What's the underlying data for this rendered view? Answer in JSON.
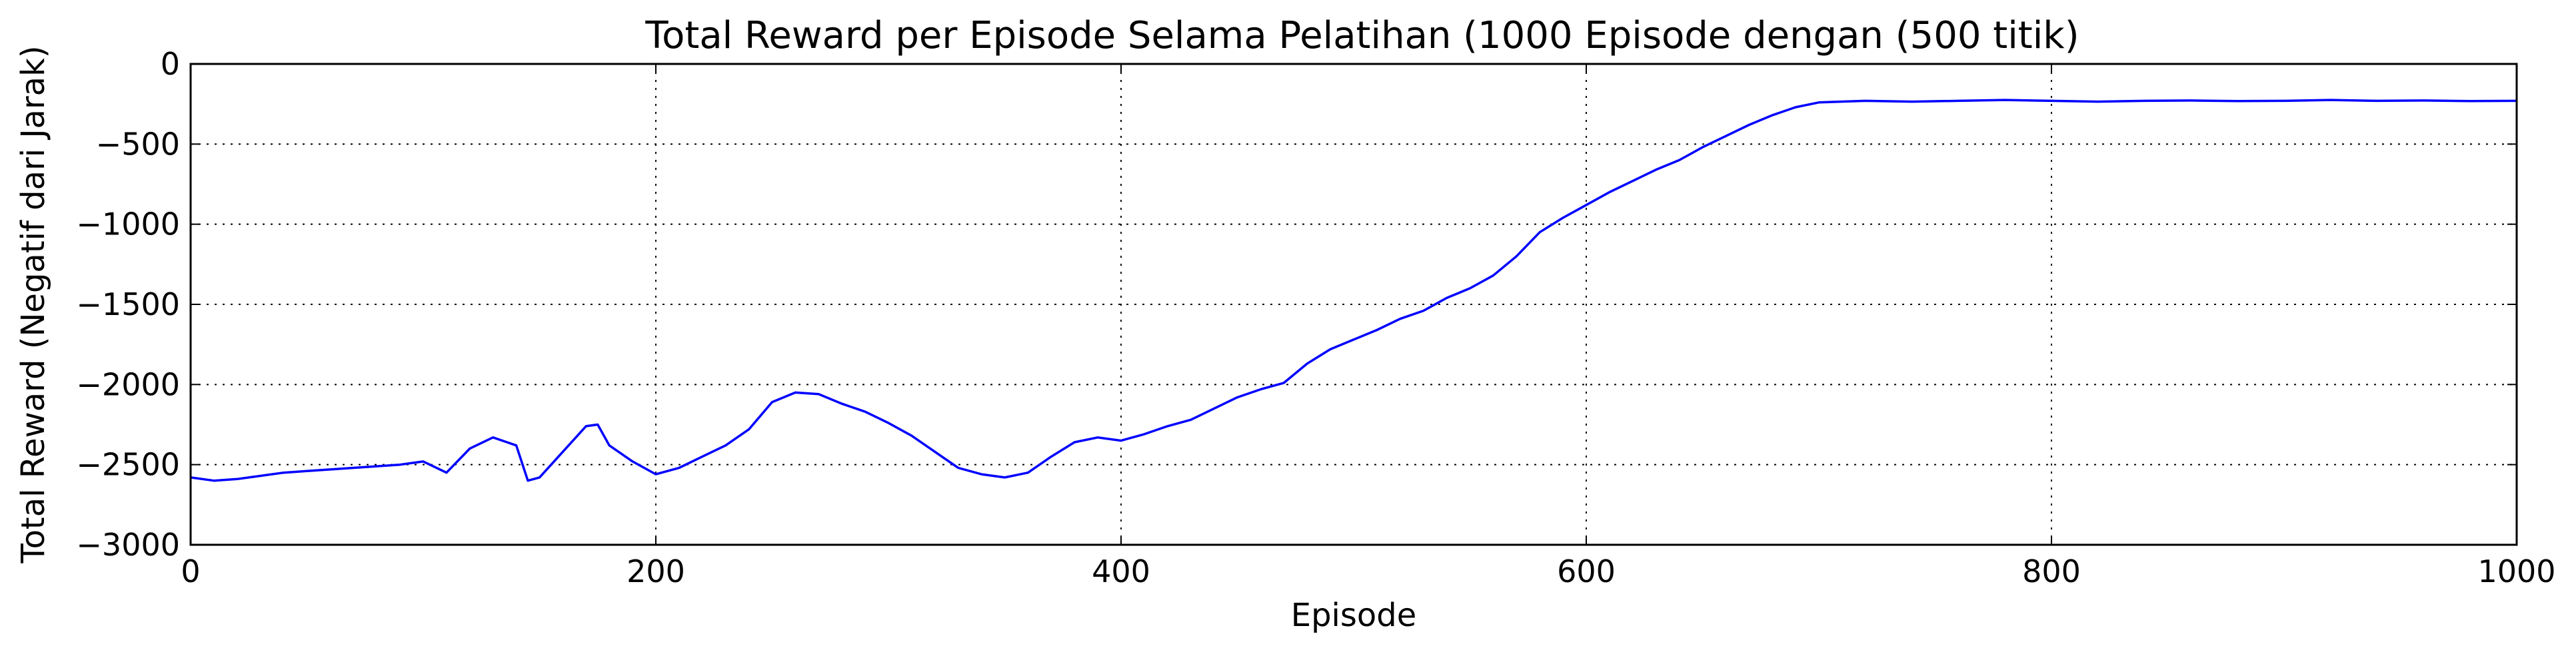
{
  "chart_data": {
    "type": "line",
    "title": "Total Reward per Episode Selama Pelatihan (1000 Episode dengan (500 titik)",
    "xlabel": "Episode",
    "ylabel": "Total Reward (Negatif dari Jarak)",
    "xlim": [
      0,
      1000
    ],
    "ylim": [
      -3000,
      0
    ],
    "x_ticks": [
      0,
      200,
      400,
      600,
      800,
      1000
    ],
    "x_tick_labels": [
      "0",
      "200",
      "400",
      "600",
      "800",
      "1000"
    ],
    "y_ticks": [
      0,
      -500,
      -1000,
      -1500,
      -2000,
      -2500,
      -3000
    ],
    "y_tick_labels": [
      "0",
      "−500",
      "−1000",
      "−1500",
      "−2000",
      "−2500",
      "−3000"
    ],
    "grid": true,
    "grid_style": "dotted",
    "series": [
      {
        "color": "#0000ff",
        "x": [
          0,
          10,
          20,
          30,
          40,
          50,
          60,
          70,
          80,
          90,
          100,
          110,
          120,
          130,
          140,
          145,
          150,
          160,
          170,
          175,
          180,
          190,
          200,
          210,
          220,
          230,
          240,
          250,
          260,
          270,
          280,
          290,
          300,
          310,
          320,
          330,
          340,
          350,
          360,
          370,
          380,
          390,
          400,
          410,
          420,
          430,
          440,
          450,
          460,
          470,
          480,
          490,
          500,
          510,
          520,
          530,
          540,
          550,
          560,
          570,
          580,
          590,
          600,
          610,
          620,
          630,
          640,
          650,
          660,
          670,
          680,
          690,
          700,
          720,
          740,
          760,
          780,
          800,
          820,
          840,
          860,
          880,
          900,
          920,
          940,
          960,
          980,
          1000
        ],
        "y": [
          -2580,
          -2600,
          -2590,
          -2570,
          -2550,
          -2540,
          -2530,
          -2520,
          -2510,
          -2500,
          -2480,
          -2550,
          -2400,
          -2330,
          -2380,
          -2600,
          -2580,
          -2420,
          -2260,
          -2250,
          -2380,
          -2480,
          -2560,
          -2520,
          -2450,
          -2380,
          -2280,
          -2110,
          -2050,
          -2060,
          -2120,
          -2170,
          -2240,
          -2320,
          -2420,
          -2520,
          -2560,
          -2580,
          -2550,
          -2450,
          -2360,
          -2330,
          -2350,
          -2310,
          -2260,
          -2220,
          -2150,
          -2080,
          -2030,
          -1990,
          -1870,
          -1780,
          -1720,
          -1660,
          -1590,
          -1540,
          -1460,
          -1400,
          -1320,
          -1200,
          -1050,
          -960,
          -880,
          -800,
          -730,
          -660,
          -600,
          -520,
          -450,
          -380,
          -320,
          -270,
          -240,
          -230,
          -235,
          -230,
          -225,
          -230,
          -235,
          -230,
          -228,
          -232,
          -230,
          -225,
          -230,
          -228,
          -232,
          -230
        ]
      }
    ]
  }
}
